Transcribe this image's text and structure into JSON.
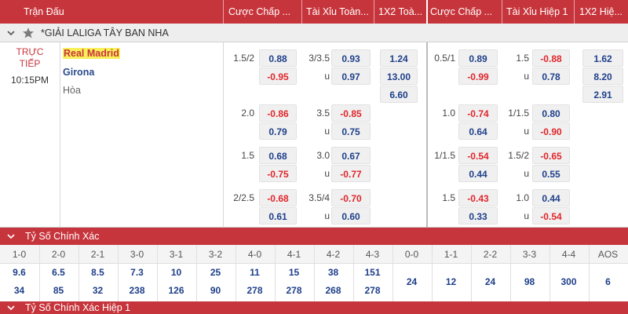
{
  "header": {
    "match": "Trận Đấu",
    "hdp_ft": "Cược Chấp ...",
    "ou_ft": "Tài Xỉu Toàn...",
    "x12_ft": "1X2 Toà...",
    "hdp_h1": "Cược Chấp ...",
    "ou_h1": "Tài Xỉu Hiệp 1",
    "x12_h1": "1X2 Hiệ..."
  },
  "league": {
    "name": "*GIẢI LALIGA TÂY BAN NHA"
  },
  "match": {
    "status_line1": "TRỰC",
    "status_line2": "TIẾP",
    "time": "10:15PM",
    "home": "Real Madrid",
    "away": "Girona",
    "draw": "Hòa"
  },
  "odds_rows": [
    {
      "hdp": "1.5/2",
      "hdp_top": "0.88",
      "hdp_bot": "-0.95",
      "ou": "3/3.5",
      "ou_top": "0.93",
      "ou_u": "u",
      "ou_bot": "0.97",
      "x12": [
        "1.24",
        "13.00",
        "6.60"
      ],
      "h1_hdp": "0.5/1",
      "h1_hdp_top": "0.89",
      "h1_hdp_bot": "-0.99",
      "h1_ou": "1.5",
      "h1_ou_top": "-0.88",
      "h1_ou_u": "u",
      "h1_ou_bot": "0.78",
      "h1_x12": [
        "1.62",
        "8.20",
        "2.91"
      ]
    },
    {
      "hdp": "2.0",
      "hdp_top": "-0.86",
      "hdp_bot": "0.79",
      "ou": "3.5",
      "ou_top": "-0.85",
      "ou_u": "u",
      "ou_bot": "0.75",
      "h1_hdp": "1.0",
      "h1_hdp_top": "-0.74",
      "h1_hdp_bot": "0.64",
      "h1_ou": "1/1.5",
      "h1_ou_top": "0.80",
      "h1_ou_u": "u",
      "h1_ou_bot": "-0.90"
    },
    {
      "hdp": "1.5",
      "hdp_top": "0.68",
      "hdp_bot": "-0.75",
      "ou": "3.0",
      "ou_top": "0.67",
      "ou_u": "u",
      "ou_bot": "-0.77",
      "h1_hdp": "1/1.5",
      "h1_hdp_top": "-0.54",
      "h1_hdp_bot": "0.44",
      "h1_ou": "1.5/2",
      "h1_ou_top": "-0.65",
      "h1_ou_u": "u",
      "h1_ou_bot": "0.55"
    },
    {
      "hdp": "2/2.5",
      "hdp_top": "-0.68",
      "hdp_bot": "0.61",
      "ou": "3.5/4",
      "ou_top": "-0.70",
      "ou_u": "u",
      "ou_bot": "0.60",
      "h1_hdp": "1.5",
      "h1_hdp_top": "-0.43",
      "h1_hdp_bot": "0.33",
      "h1_ou": "1.0",
      "h1_ou_top": "0.44",
      "h1_ou_u": "u",
      "h1_ou_bot": "-0.54"
    }
  ],
  "correct_score": {
    "title": "Tỷ Số Chính Xác",
    "labels": [
      "1-0",
      "2-0",
      "2-1",
      "3-0",
      "3-1",
      "3-2",
      "4-0",
      "4-1",
      "4-2",
      "4-3",
      "0-0",
      "1-1",
      "2-2",
      "3-3",
      "4-4",
      "AOS"
    ],
    "home_odds": [
      "9.6",
      "6.5",
      "8.5",
      "7.3",
      "10",
      "25",
      "11",
      "15",
      "38",
      "151"
    ],
    "away_odds": [
      "34",
      "85",
      "32",
      "238",
      "126",
      "90",
      "278",
      "278",
      "268",
      "278"
    ],
    "draw_odds": [
      "24",
      "12",
      "24",
      "98",
      "300",
      "6"
    ]
  },
  "correct_score_h1": {
    "title": "Tỷ Số Chính Xác Hiệp 1"
  },
  "colors": {
    "header_red": "#c7353c",
    "positive": "#1e3f8a",
    "negative": "#e0262b",
    "highlight": "#f9f05a"
  },
  "icons": [
    "chevron-down-icon",
    "star-icon"
  ]
}
